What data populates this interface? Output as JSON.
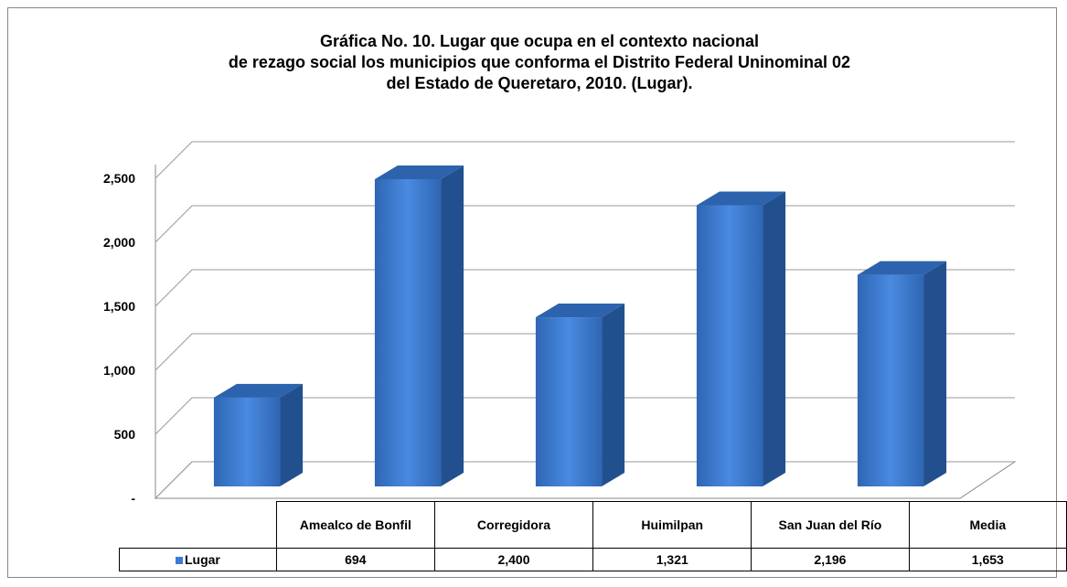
{
  "chart_data": {
    "type": "bar3d",
    "title": "Gráfica No. 10. Lugar que ocupa en el contexto nacional",
    "subtitle": "de rezago social los municipios que conforma el  Distrito Federal Uninominal 02",
    "subtitle2": "del Estado de Queretaro, 2010. (Lugar).",
    "categories": [
      "Amealco de Bonfil",
      "Corregidora",
      "Huimilpan",
      "San Juan del Río",
      "Media"
    ],
    "series": [
      {
        "name": "Lugar",
        "color": "#3b7bd4",
        "values": [
          694,
          2400,
          1321,
          2196,
          1653
        ],
        "value_labels": [
          "694",
          "2,400",
          "1,321",
          "2,196",
          "1,653"
        ]
      }
    ],
    "ylim": [
      0,
      2500
    ],
    "yticks": [
      {
        "value": 0,
        "label": "-"
      },
      500,
      {
        "value": 1000,
        "label": "1,000"
      },
      {
        "value": 1500,
        "label": "1,500"
      },
      {
        "value": 2000,
        "label": "2,000"
      },
      {
        "value": 2500,
        "label": "2,500"
      }
    ],
    "grid": true
  }
}
